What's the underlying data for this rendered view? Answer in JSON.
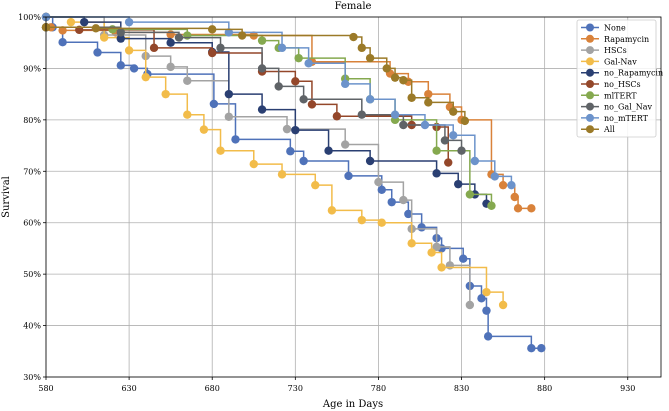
{
  "chart_data": {
    "type": "line",
    "title": "Female",
    "xlabel": "Age in Days",
    "ylabel": "Survival",
    "xlim": [
      580,
      950
    ],
    "ylim": [
      30,
      100
    ],
    "xticks": [
      "580",
      "630",
      "680",
      "730",
      "780",
      "830",
      "880",
      "930"
    ],
    "yticks": [
      "30%",
      "40%",
      "50%",
      "60%",
      "70%",
      "80%",
      "90%",
      "100%"
    ],
    "grid": true,
    "legend_position": "top-right",
    "series": [
      {
        "name": "None",
        "color": "#4f72b9",
        "x": [
          580,
          584,
          590,
          611,
          625,
          633,
          641,
          681,
          694,
          727,
          735,
          762,
          782,
          788,
          798,
          806,
          815,
          818,
          831,
          835,
          842,
          845,
          846,
          872,
          878
        ],
        "y": [
          100,
          98,
          95.1,
          93.1,
          90.6,
          90,
          88.9,
          83.1,
          76.2,
          73.9,
          72,
          69.1,
          66.4,
          64,
          61.7,
          59.1,
          57,
          55,
          53,
          47.7,
          45.3,
          42.9,
          37.9,
          35.6,
          35.6
        ]
      },
      {
        "name": "Rapamycin",
        "color": "#d9823a",
        "x": [
          583,
          590,
          622,
          655,
          705,
          740,
          787,
          798,
          810,
          823,
          830,
          848,
          855,
          862,
          864,
          872
        ],
        "y": [
          98,
          97.4,
          97,
          96.6,
          96.4,
          91.3,
          89,
          87.4,
          85,
          82.5,
          80,
          69.4,
          67.3,
          65,
          62.8,
          62.8
        ]
      },
      {
        "name": "HSCs",
        "color": "#a3a3a3",
        "x": [
          580,
          615,
          640,
          655,
          665,
          690,
          725,
          760,
          780,
          795,
          800,
          815,
          823,
          835
        ],
        "y": [
          100,
          96.5,
          92.4,
          90.3,
          87.6,
          80.6,
          78.2,
          75.2,
          67.9,
          64.4,
          58.8,
          55.3,
          51.7,
          44
        ]
      },
      {
        "name": "Gal-Nav",
        "color": "#f2bc4a",
        "x": [
          580,
          595,
          615,
          630,
          640,
          652,
          665,
          675,
          685,
          705,
          722,
          742,
          752,
          770,
          782,
          800,
          812,
          818,
          845,
          855
        ],
        "y": [
          100,
          99,
          96,
          93.5,
          88.3,
          85,
          81,
          78.1,
          74,
          71.4,
          69.4,
          67.3,
          62.4,
          60.5,
          60,
          56,
          54.2,
          51.3,
          46.5,
          44
        ]
      },
      {
        "name": "no_Rapamycin",
        "color": "#2a3f72",
        "x": [
          580,
          603,
          625,
          655,
          680,
          690,
          710,
          730,
          750,
          775,
          815,
          828,
          838,
          845
        ],
        "y": [
          100,
          99,
          95.8,
          95,
          93.2,
          85,
          82,
          78,
          74,
          72,
          69.6,
          67.5,
          65.5,
          63.7
        ]
      },
      {
        "name": "no_HSCs",
        "color": "#94472a",
        "x": [
          580,
          600,
          645,
          680,
          710,
          730,
          740,
          755,
          800,
          815,
          822
        ],
        "y": [
          98,
          97.5,
          94,
          93,
          89.4,
          87.5,
          83,
          80.7,
          79,
          78.6,
          71.7
        ]
      },
      {
        "name": "mlTERT",
        "color": "#85a94f",
        "x": [
          580,
          620,
          665,
          710,
          720,
          732,
          760,
          775,
          790,
          815,
          835,
          848
        ],
        "y": [
          98,
          97.6,
          96.4,
          95.4,
          94,
          92,
          88,
          84,
          80,
          74,
          65.5,
          63.3
        ]
      },
      {
        "name": "no_Gal_Nav",
        "color": "#5f6367",
        "x": [
          580,
          625,
          660,
          685,
          710,
          720,
          735,
          770,
          795,
          820,
          830
        ],
        "y": [
          98,
          97,
          96,
          94,
          90,
          86.5,
          84,
          81,
          79,
          76,
          74
        ]
      },
      {
        "name": "no_mTERT",
        "color": "#6c93cb",
        "x": [
          580,
          630,
          690,
          722,
          738,
          760,
          775,
          790,
          808,
          825,
          838,
          850,
          860
        ],
        "y": [
          100,
          99,
          97,
          94,
          91,
          87,
          84,
          81,
          79,
          77,
          72,
          69,
          67.3
        ]
      },
      {
        "name": "All",
        "color": "#9b7a28",
        "x": [
          580,
          610,
          680,
          698,
          765,
          770,
          775,
          785,
          790,
          795,
          800,
          810,
          825,
          832
        ],
        "y": [
          98,
          97.8,
          97.6,
          96.4,
          96.1,
          94,
          92,
          90,
          88.2,
          87.7,
          84.3,
          83.4,
          81.6,
          79.8
        ]
      }
    ]
  }
}
